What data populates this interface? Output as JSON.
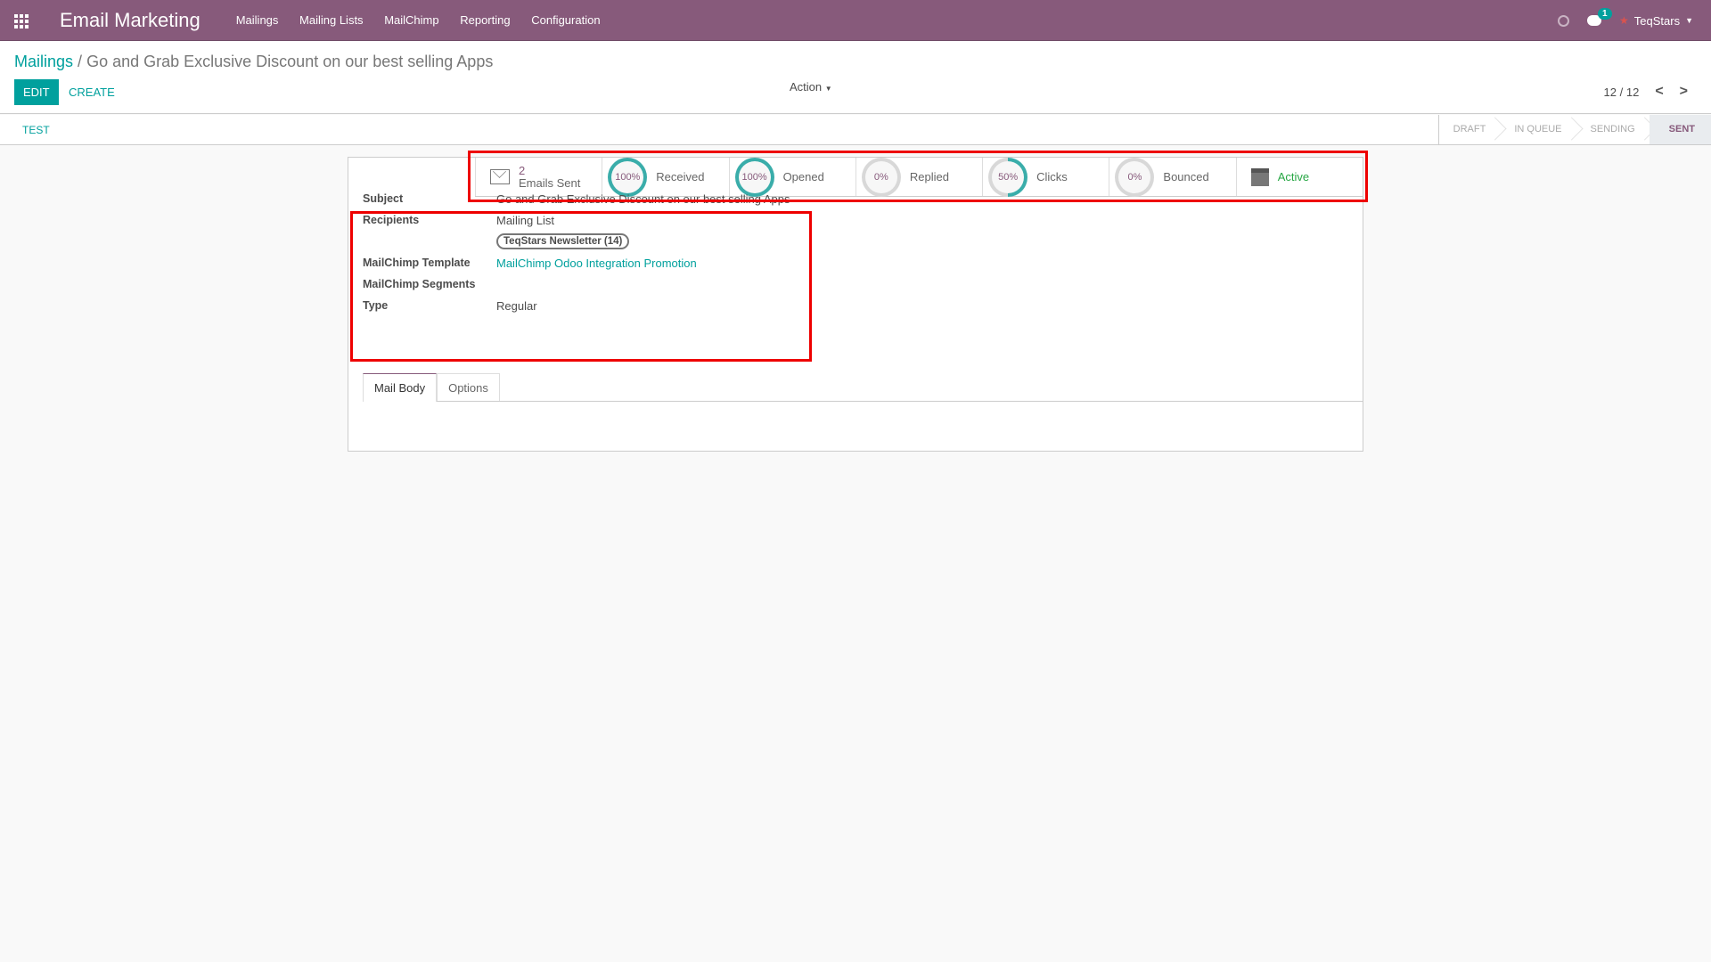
{
  "nav": {
    "app_title": "Email Marketing",
    "menu": [
      "Mailings",
      "Mailing Lists",
      "MailChimp",
      "Reporting",
      "Configuration"
    ],
    "chat_count": "1",
    "user": "TeqStars"
  },
  "breadcrumb": {
    "parent": "Mailings",
    "separator": "/",
    "current": "Go and Grab Exclusive Discount on our best selling Apps"
  },
  "buttons": {
    "edit": "EDIT",
    "create": "CREATE",
    "action": "Action",
    "test": "TEST"
  },
  "pager": {
    "value": "12 / 12"
  },
  "statusbar": {
    "steps": [
      "DRAFT",
      "IN QUEUE",
      "SENDING",
      "SENT"
    ],
    "current": "SENT"
  },
  "stats": {
    "emails_sent_count": "2",
    "emails_sent_label": "Emails Sent",
    "rings": [
      {
        "label": "Received",
        "value": 100,
        "text": "100%"
      },
      {
        "label": "Opened",
        "value": 100,
        "text": "100%"
      },
      {
        "label": "Replied",
        "value": 0,
        "text": "0%"
      },
      {
        "label": "Clicks",
        "value": 50,
        "text": "50%"
      },
      {
        "label": "Bounced",
        "value": 0,
        "text": "0%"
      }
    ],
    "active_label": "Active"
  },
  "fields": {
    "subject_label": "Subject",
    "subject": "Go and Grab Exclusive Discount on our best selling Apps",
    "recipients_label": "Recipients",
    "recipients": "Mailing List",
    "recipients_tag": "TeqStars Newsletter (14)",
    "template_label": "MailChimp Template",
    "template": "MailChimp Odoo Integration Promotion",
    "segments_label": "MailChimp Segments",
    "type_label": "Type",
    "type": "Regular"
  },
  "tabs": [
    "Mail Body",
    "Options"
  ],
  "colors": {
    "brand": "#875a7b",
    "accent": "#00a09d",
    "highlight": "#ee0000",
    "active": "#28a745"
  }
}
